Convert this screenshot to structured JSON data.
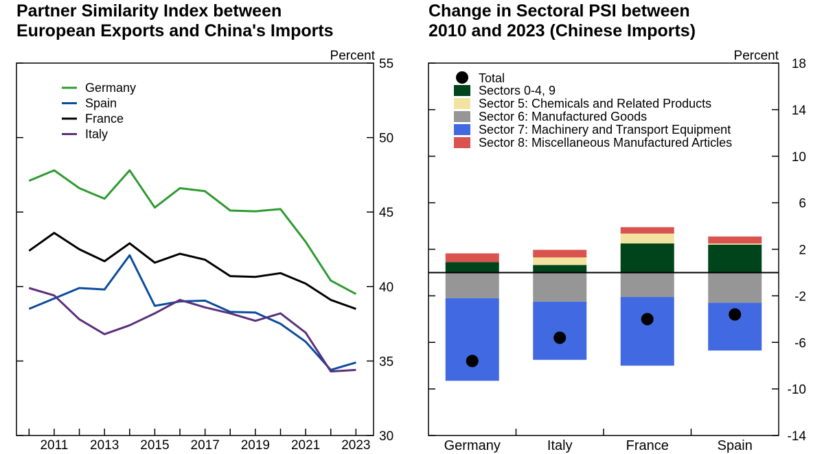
{
  "chart_data": [
    {
      "type": "line",
      "title": "Partner Similarity Index between\nEuropean Exports and China's Imports",
      "ylabel": "Percent",
      "ylim": [
        30,
        55
      ],
      "yticks": [
        30,
        35,
        40,
        45,
        50,
        55
      ],
      "xlim": [
        2009.5,
        2023.7
      ],
      "xtick_labels": [
        "2011",
        "2013",
        "2015",
        "2017",
        "2019",
        "2021",
        "2023"
      ],
      "legend_position": "top-left",
      "grid": false,
      "x": [
        2010,
        2011,
        2012,
        2013,
        2014,
        2015,
        2016,
        2017,
        2018,
        2019,
        2020,
        2021,
        2022,
        2023
      ],
      "series": [
        {
          "name": "Germany",
          "color": "#2e9a31",
          "values": [
            47.1,
            47.8,
            46.6,
            45.9,
            47.8,
            45.3,
            46.6,
            46.4,
            45.1,
            45.05,
            45.2,
            43.0,
            40.4,
            39.5
          ]
        },
        {
          "name": "Spain",
          "color": "#0a4c9c",
          "values": [
            38.5,
            39.2,
            39.9,
            39.8,
            42.1,
            38.7,
            39.0,
            39.05,
            38.3,
            38.25,
            37.5,
            36.3,
            34.4,
            34.9
          ]
        },
        {
          "name": "France",
          "color": "#000000",
          "values": [
            42.4,
            43.6,
            42.5,
            41.7,
            42.9,
            41.6,
            42.2,
            41.8,
            40.7,
            40.65,
            40.9,
            40.2,
            39.1,
            38.5
          ]
        },
        {
          "name": "Italy",
          "color": "#5b2f7c",
          "values": [
            39.9,
            39.4,
            37.8,
            36.8,
            37.4,
            38.2,
            39.1,
            38.6,
            38.2,
            37.7,
            38.2,
            36.9,
            34.3,
            34.4
          ]
        }
      ]
    },
    {
      "type": "bar",
      "stacked": true,
      "title": "Change in Sectoral PSI between\n2010 and 2023 (Chinese Imports)",
      "ylabel": "Percent",
      "ylim": [
        -14,
        18
      ],
      "yticks": [
        18,
        14,
        10,
        6,
        2,
        -2,
        -6,
        -10,
        -14
      ],
      "legend_position": "top-left",
      "grid": false,
      "zero_line": true,
      "categories": [
        "Germany",
        "Italy",
        "France",
        "Spain"
      ],
      "series": [
        {
          "name": "Sectors 0-4, 9",
          "color": "#00441b",
          "values": [
            0.9,
            0.65,
            2.5,
            2.4
          ]
        },
        {
          "name": "Sector 5: Chemicals and Related Products",
          "color": "#f3e3a1",
          "values": [
            0.0,
            0.65,
            0.85,
            0.1
          ]
        },
        {
          "name": "Sector 6: Manufactured Goods",
          "color": "#969696",
          "values": [
            -2.2,
            -2.5,
            -2.1,
            -2.6
          ]
        },
        {
          "name": "Sector 7: Machinery and Transport Equipment",
          "color": "#4169e1",
          "values": [
            -7.1,
            -5.0,
            -5.9,
            -4.1
          ]
        },
        {
          "name": "Sector 8: Miscellaneous Manufactured Articles",
          "color": "#d9534f",
          "values": [
            0.75,
            0.65,
            0.55,
            0.6
          ]
        }
      ],
      "markers": {
        "name": "Total",
        "color": "#000000",
        "values": [
          -7.6,
          -5.6,
          -4.0,
          -3.6
        ]
      }
    }
  ]
}
